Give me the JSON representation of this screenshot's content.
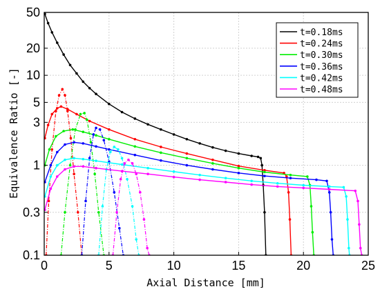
{
  "chart_data": {
    "type": "line",
    "xlabel": "Axial Distance [mm]",
    "ylabel": "Equivalence Ratio [-]",
    "xlim": [
      0,
      25
    ],
    "ylim": [
      0.1,
      50
    ],
    "yscale": "log",
    "x_ticks": [
      0,
      5,
      10,
      15,
      20,
      25
    ],
    "x_tick_labels": [
      "0",
      "5",
      "10",
      "15",
      "20",
      "25"
    ],
    "y_ticks": [
      0.1,
      0.3,
      1,
      3,
      5,
      10,
      20,
      50
    ],
    "y_tick_labels": [
      "0.1",
      "0.3",
      "1",
      "3",
      "5",
      "10",
      "20",
      "50"
    ],
    "grid": true,
    "legend_position": "top-right",
    "series": [
      {
        "name": "t=0.18ms",
        "color": "#000000",
        "solid": [
          [
            0.05,
            48
          ],
          [
            0.3,
            38
          ],
          [
            0.6,
            30
          ],
          [
            1,
            23
          ],
          [
            1.5,
            17
          ],
          [
            2,
            13
          ],
          [
            2.5,
            10.5
          ],
          [
            3,
            8.5
          ],
          [
            3.5,
            7.2
          ],
          [
            4,
            6.2
          ],
          [
            5,
            4.8
          ],
          [
            6,
            3.9
          ],
          [
            7,
            3.3
          ],
          [
            8,
            2.85
          ],
          [
            9,
            2.5
          ],
          [
            10,
            2.2
          ],
          [
            11,
            1.95
          ],
          [
            12,
            1.75
          ],
          [
            13,
            1.58
          ],
          [
            14,
            1.45
          ],
          [
            15,
            1.35
          ],
          [
            16,
            1.27
          ],
          [
            16.5,
            1.24
          ],
          [
            16.7,
            1.2
          ],
          [
            16.8,
            1.0
          ],
          [
            16.9,
            0.6
          ],
          [
            17.0,
            0.3
          ],
          [
            17.1,
            0.1
          ]
        ],
        "dash": []
      },
      {
        "name": "t=0.24ms",
        "color": "#ff0000",
        "solid": [
          [
            0.05,
            2.0
          ],
          [
            0.3,
            2.8
          ],
          [
            0.6,
            3.7
          ],
          [
            1,
            4.3
          ],
          [
            1.3,
            4.5
          ],
          [
            1.8,
            4.2
          ],
          [
            2.5,
            3.7
          ],
          [
            3.5,
            3.1
          ],
          [
            5,
            2.5
          ],
          [
            7,
            1.95
          ],
          [
            9,
            1.6
          ],
          [
            11,
            1.35
          ],
          [
            13,
            1.15
          ],
          [
            15,
            0.98
          ],
          [
            17,
            0.88
          ],
          [
            18.5,
            0.82
          ],
          [
            18.7,
            0.75
          ],
          [
            18.85,
            0.5
          ],
          [
            18.95,
            0.25
          ],
          [
            19.05,
            0.1
          ]
        ],
        "dash": [
          [
            0.15,
            0.1
          ],
          [
            0.35,
            0.4
          ],
          [
            0.6,
            1.5
          ],
          [
            0.9,
            4.0
          ],
          [
            1.15,
            6.0
          ],
          [
            1.4,
            7.0
          ],
          [
            1.6,
            6.0
          ],
          [
            1.8,
            4.0
          ],
          [
            2.05,
            2.0
          ],
          [
            2.3,
            0.8
          ],
          [
            2.6,
            0.3
          ],
          [
            2.9,
            0.1
          ]
        ]
      },
      {
        "name": "t=0.30ms",
        "color": "#00ee00",
        "solid": [
          [
            0.05,
            1.0
          ],
          [
            0.4,
            1.5
          ],
          [
            0.9,
            2.1
          ],
          [
            1.5,
            2.4
          ],
          [
            2.2,
            2.5
          ],
          [
            3,
            2.35
          ],
          [
            4,
            2.15
          ],
          [
            5,
            1.95
          ],
          [
            7,
            1.62
          ],
          [
            9,
            1.38
          ],
          [
            11,
            1.2
          ],
          [
            13,
            1.05
          ],
          [
            15,
            0.93
          ],
          [
            17,
            0.84
          ],
          [
            19,
            0.78
          ],
          [
            20.3,
            0.75
          ],
          [
            20.5,
            0.6
          ],
          [
            20.6,
            0.35
          ],
          [
            20.7,
            0.18
          ],
          [
            20.8,
            0.1
          ]
        ],
        "dash": [
          [
            1.3,
            0.1
          ],
          [
            1.6,
            0.3
          ],
          [
            2.0,
            1.0
          ],
          [
            2.4,
            2.5
          ],
          [
            2.8,
            3.7
          ],
          [
            3.1,
            3.8
          ],
          [
            3.3,
            3.2
          ],
          [
            3.6,
            1.8
          ],
          [
            3.9,
            0.8
          ],
          [
            4.2,
            0.3
          ],
          [
            4.6,
            0.1
          ]
        ]
      },
      {
        "name": "t=0.36ms",
        "color": "#0000ff",
        "solid": [
          [
            0.05,
            0.65
          ],
          [
            0.5,
            1.0
          ],
          [
            1,
            1.4
          ],
          [
            1.6,
            1.7
          ],
          [
            2.3,
            1.8
          ],
          [
            3,
            1.75
          ],
          [
            4,
            1.62
          ],
          [
            5,
            1.5
          ],
          [
            7,
            1.3
          ],
          [
            9,
            1.13
          ],
          [
            11,
            1.0
          ],
          [
            13,
            0.9
          ],
          [
            15,
            0.82
          ],
          [
            17,
            0.76
          ],
          [
            19,
            0.72
          ],
          [
            21,
            0.69
          ],
          [
            21.8,
            0.67
          ],
          [
            22.0,
            0.5
          ],
          [
            22.1,
            0.3
          ],
          [
            22.2,
            0.15
          ],
          [
            22.3,
            0.1
          ]
        ],
        "dash": [
          [
            2.9,
            0.1
          ],
          [
            3.2,
            0.4
          ],
          [
            3.5,
            1.2
          ],
          [
            3.8,
            2.2
          ],
          [
            4.0,
            2.6
          ],
          [
            4.3,
            2.5
          ],
          [
            4.6,
            1.9
          ],
          [
            5.0,
            1.1
          ],
          [
            5.4,
            0.5
          ],
          [
            5.8,
            0.2
          ],
          [
            6.1,
            0.1
          ]
        ]
      },
      {
        "name": "t=0.42ms",
        "color": "#00ffff",
        "solid": [
          [
            0.05,
            0.45
          ],
          [
            0.5,
            0.75
          ],
          [
            1,
            1.0
          ],
          [
            1.6,
            1.15
          ],
          [
            2.3,
            1.2
          ],
          [
            3,
            1.17
          ],
          [
            4,
            1.12
          ],
          [
            6,
            1.02
          ],
          [
            8,
            0.93
          ],
          [
            10,
            0.85
          ],
          [
            12,
            0.78
          ],
          [
            14,
            0.72
          ],
          [
            16,
            0.67
          ],
          [
            18,
            0.63
          ],
          [
            20,
            0.6
          ],
          [
            22,
            0.58
          ],
          [
            23.1,
            0.57
          ],
          [
            23.3,
            0.45
          ],
          [
            23.4,
            0.25
          ],
          [
            23.5,
            0.12
          ],
          [
            23.55,
            0.1
          ]
        ],
        "dash": [
          [
            4.2,
            0.1
          ],
          [
            4.5,
            0.35
          ],
          [
            4.8,
            0.9
          ],
          [
            5.1,
            1.4
          ],
          [
            5.4,
            1.6
          ],
          [
            5.7,
            1.5
          ],
          [
            6.0,
            1.2
          ],
          [
            6.4,
            0.7
          ],
          [
            6.8,
            0.35
          ],
          [
            7.1,
            0.15
          ],
          [
            7.3,
            0.1
          ]
        ]
      },
      {
        "name": "t=0.48ms",
        "color": "#ff00ff",
        "solid": [
          [
            0.05,
            0.32
          ],
          [
            0.5,
            0.55
          ],
          [
            1,
            0.75
          ],
          [
            1.6,
            0.9
          ],
          [
            2.3,
            0.97
          ],
          [
            3,
            0.97
          ],
          [
            4,
            0.93
          ],
          [
            6,
            0.86
          ],
          [
            8,
            0.8
          ],
          [
            10,
            0.74
          ],
          [
            12,
            0.69
          ],
          [
            14,
            0.65
          ],
          [
            16,
            0.61
          ],
          [
            18,
            0.58
          ],
          [
            20,
            0.56
          ],
          [
            22,
            0.54
          ],
          [
            24,
            0.52
          ],
          [
            24.2,
            0.4
          ],
          [
            24.3,
            0.22
          ],
          [
            24.4,
            0.12
          ],
          [
            24.5,
            0.1
          ]
        ],
        "dash": [
          [
            5.3,
            0.1
          ],
          [
            5.6,
            0.3
          ],
          [
            5.9,
            0.7
          ],
          [
            6.2,
            1.05
          ],
          [
            6.5,
            1.15
          ],
          [
            6.8,
            1.05
          ],
          [
            7.1,
            0.8
          ],
          [
            7.4,
            0.5
          ],
          [
            7.7,
            0.25
          ],
          [
            7.95,
            0.12
          ],
          [
            8.1,
            0.1
          ]
        ]
      }
    ]
  }
}
